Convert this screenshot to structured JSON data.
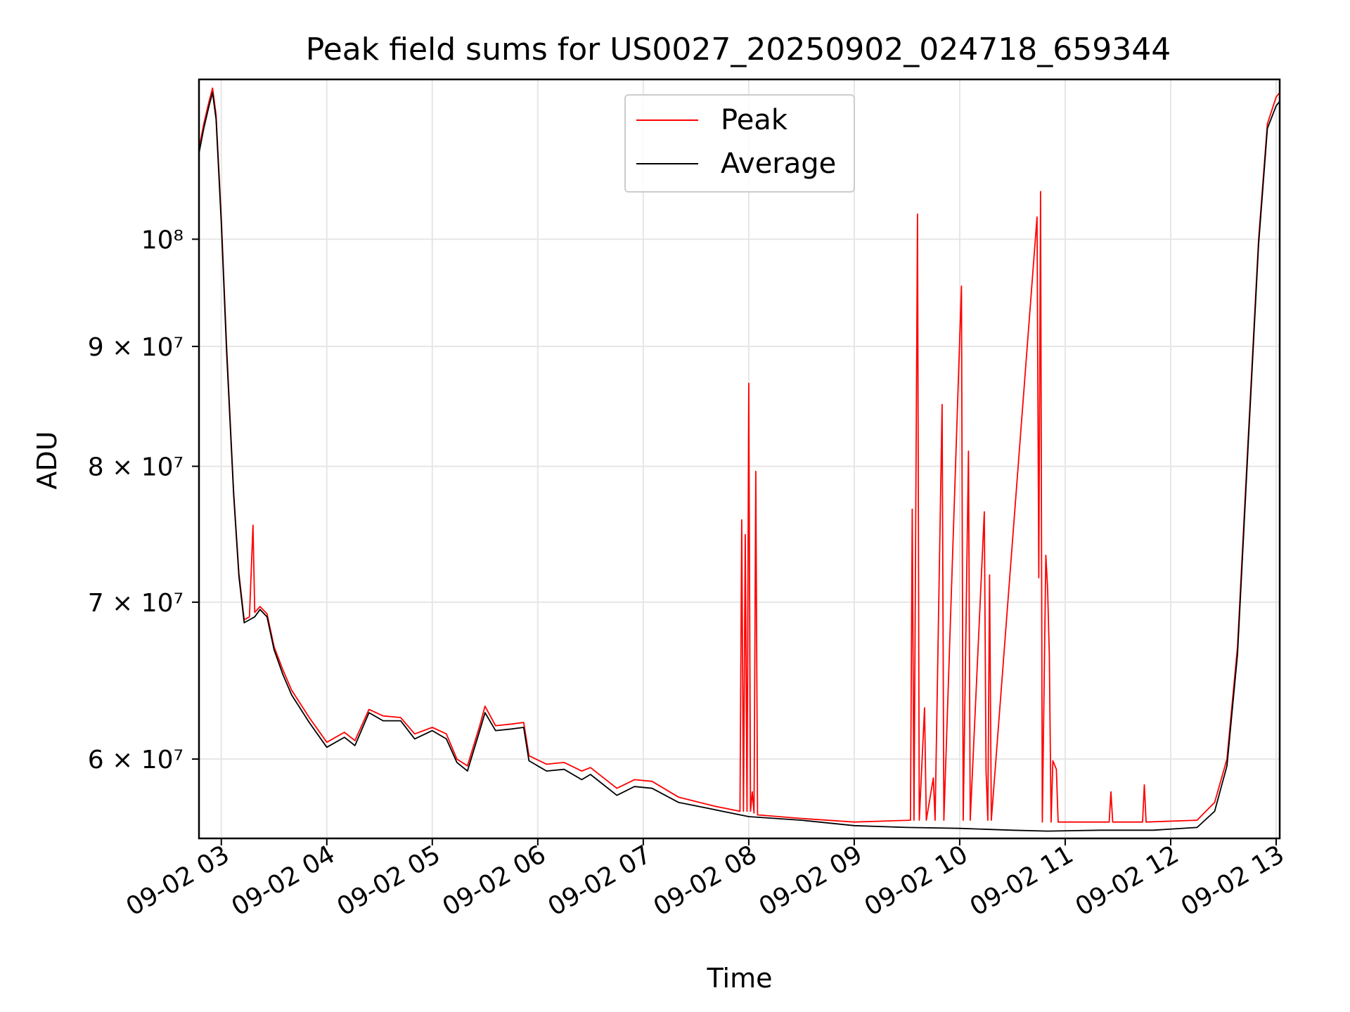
{
  "chart_data": {
    "type": "line",
    "title": "Peak field sums for US0027_20250902_024718_659344",
    "xlabel": "Time",
    "ylabel": "ADU",
    "y_scale": "log",
    "grid": true,
    "legend_position": "top-center",
    "xlim": [
      "2025-09-02 02:47:18",
      "2025-09-02 13:02:00"
    ],
    "ylim": [
      55500000,
      117000000
    ],
    "x_ticks": [
      "09-02 03",
      "09-02 04",
      "09-02 05",
      "09-02 06",
      "09-02 07",
      "09-02 08",
      "09-02 09",
      "09-02 10",
      "09-02 11",
      "09-02 12",
      "09-02 13"
    ],
    "y_ticks": [
      {
        "value": 60000000,
        "label": "6 × 10⁷"
      },
      {
        "value": 70000000,
        "label": "7 × 10⁷"
      },
      {
        "value": 80000000,
        "label": "8 × 10⁷"
      },
      {
        "value": 90000000,
        "label": "9 × 10⁷"
      },
      {
        "value": 100000000,
        "label": "10⁸"
      }
    ],
    "series": [
      {
        "name": "Peak",
        "color": "#ff0000",
        "points": [
          [
            "2025-09-02 02:47",
            109000000
          ],
          [
            "2025-09-02 02:50",
            112000000
          ],
          [
            "2025-09-02 02:53",
            114500000
          ],
          [
            "2025-09-02 02:55",
            116000000
          ],
          [
            "2025-09-02 02:57",
            113000000
          ],
          [
            "2025-09-02 03:00",
            102000000
          ],
          [
            "2025-09-02 03:03",
            90000000
          ],
          [
            "2025-09-02 03:07",
            78000000
          ],
          [
            "2025-09-02 03:10",
            72000000
          ],
          [
            "2025-09-02 03:13",
            68800000
          ],
          [
            "2025-09-02 03:16",
            69000000
          ],
          [
            "2025-09-02 03:18",
            75500000
          ],
          [
            "2025-09-02 03:19",
            69300000
          ],
          [
            "2025-09-02 03:22",
            69700000
          ],
          [
            "2025-09-02 03:26",
            69200000
          ],
          [
            "2025-09-02 03:30",
            67000000
          ],
          [
            "2025-09-02 03:35",
            65500000
          ],
          [
            "2025-09-02 03:40",
            64200000
          ],
          [
            "2025-09-02 03:50",
            62500000
          ],
          [
            "2025-09-02 04:00",
            61000000
          ],
          [
            "2025-09-02 04:10",
            61600000
          ],
          [
            "2025-09-02 04:16",
            61100000
          ],
          [
            "2025-09-02 04:24",
            63000000
          ],
          [
            "2025-09-02 04:32",
            62600000
          ],
          [
            "2025-09-02 04:42",
            62500000
          ],
          [
            "2025-09-02 04:50",
            61500000
          ],
          [
            "2025-09-02 05:00",
            61900000
          ],
          [
            "2025-09-02 05:08",
            61500000
          ],
          [
            "2025-09-02 05:14",
            60000000
          ],
          [
            "2025-09-02 05:20",
            59600000
          ],
          [
            "2025-09-02 05:27",
            62000000
          ],
          [
            "2025-09-02 05:30",
            63200000
          ],
          [
            "2025-09-02 05:36",
            62000000
          ],
          [
            "2025-09-02 05:45",
            62100000
          ],
          [
            "2025-09-02 05:52",
            62200000
          ],
          [
            "2025-09-02 05:55",
            60200000
          ],
          [
            "2025-09-02 06:05",
            59700000
          ],
          [
            "2025-09-02 06:15",
            59800000
          ],
          [
            "2025-09-02 06:25",
            59300000
          ],
          [
            "2025-09-02 06:30",
            59500000
          ],
          [
            "2025-09-02 06:45",
            58300000
          ],
          [
            "2025-09-02 06:55",
            58800000
          ],
          [
            "2025-09-02 07:05",
            58700000
          ],
          [
            "2025-09-02 07:20",
            57800000
          ],
          [
            "2025-09-02 07:40",
            57300000
          ],
          [
            "2025-09-02 07:55",
            57000000
          ],
          [
            "2025-09-02 07:56",
            75900000
          ],
          [
            "2025-09-02 07:57",
            57000000
          ],
          [
            "2025-09-02 07:58",
            74800000
          ],
          [
            "2025-09-02 07:59",
            57000000
          ],
          [
            "2025-09-02 08:00",
            86800000
          ],
          [
            "2025-09-02 08:01",
            57000000
          ],
          [
            "2025-09-02 08:02",
            58100000
          ],
          [
            "2025-09-02 08:03",
            56900000
          ],
          [
            "2025-09-02 08:04",
            79600000
          ],
          [
            "2025-09-02 08:05",
            56800000
          ],
          [
            "2025-09-02 08:30",
            56600000
          ],
          [
            "2025-09-02 09:00",
            56400000
          ],
          [
            "2025-09-02 09:32",
            56500000
          ],
          [
            "2025-09-02 09:33",
            76700000
          ],
          [
            "2025-09-02 09:34",
            56500000
          ],
          [
            "2025-09-02 09:36",
            102500000
          ],
          [
            "2025-09-02 09:37",
            56500000
          ],
          [
            "2025-09-02 09:40",
            63100000
          ],
          [
            "2025-09-02 09:41",
            56500000
          ],
          [
            "2025-09-02 09:45",
            58900000
          ],
          [
            "2025-09-02 09:46",
            56500000
          ],
          [
            "2025-09-02 09:50",
            85000000
          ],
          [
            "2025-09-02 09:51",
            56500000
          ],
          [
            "2025-09-02 10:01",
            95500000
          ],
          [
            "2025-09-02 10:02",
            56500000
          ],
          [
            "2025-09-02 10:05",
            81200000
          ],
          [
            "2025-09-02 10:06",
            56500000
          ],
          [
            "2025-09-02 10:14",
            76500000
          ],
          [
            "2025-09-02 10:15",
            59300000
          ],
          [
            "2025-09-02 10:16",
            56500000
          ],
          [
            "2025-09-02 10:17",
            71900000
          ],
          [
            "2025-09-02 10:18",
            56500000
          ],
          [
            "2025-09-02 10:44",
            102200000
          ],
          [
            "2025-09-02 10:45",
            71700000
          ],
          [
            "2025-09-02 10:46",
            104800000
          ],
          [
            "2025-09-02 10:47",
            56400000
          ],
          [
            "2025-09-02 10:49",
            73300000
          ],
          [
            "2025-09-02 10:50",
            71000000
          ],
          [
            "2025-09-02 10:51",
            66400000
          ],
          [
            "2025-09-02 10:52",
            56400000
          ],
          [
            "2025-09-02 10:53",
            59900000
          ],
          [
            "2025-09-02 10:55",
            59400000
          ],
          [
            "2025-09-02 10:56",
            56400000
          ],
          [
            "2025-09-02 11:25",
            56400000
          ],
          [
            "2025-09-02 11:26",
            58100000
          ],
          [
            "2025-09-02 11:27",
            56400000
          ],
          [
            "2025-09-02 11:44",
            56400000
          ],
          [
            "2025-09-02 11:45",
            58500000
          ],
          [
            "2025-09-02 11:46",
            56400000
          ],
          [
            "2025-09-02 12:15",
            56500000
          ],
          [
            "2025-09-02 12:25",
            57500000
          ],
          [
            "2025-09-02 12:32",
            60000000
          ],
          [
            "2025-09-02 12:38",
            67000000
          ],
          [
            "2025-09-02 12:44",
            82000000
          ],
          [
            "2025-09-02 12:50",
            100000000
          ],
          [
            "2025-09-02 12:55",
            112000000
          ],
          [
            "2025-09-02 13:00",
            115000000
          ],
          [
            "2025-09-02 13:02",
            115500000
          ]
        ]
      },
      {
        "name": "Average",
        "color": "#000000",
        "points": [
          [
            "2025-09-02 02:47",
            108500000
          ],
          [
            "2025-09-02 02:50",
            111500000
          ],
          [
            "2025-09-02 02:53",
            114000000
          ],
          [
            "2025-09-02 02:55",
            115500000
          ],
          [
            "2025-09-02 02:57",
            112500000
          ],
          [
            "2025-09-02 03:00",
            101500000
          ],
          [
            "2025-09-02 03:03",
            89500000
          ],
          [
            "2025-09-02 03:07",
            77800000
          ],
          [
            "2025-09-02 03:10",
            71800000
          ],
          [
            "2025-09-02 03:13",
            68600000
          ],
          [
            "2025-09-02 03:16",
            68800000
          ],
          [
            "2025-09-02 03:19",
            69000000
          ],
          [
            "2025-09-02 03:22",
            69500000
          ],
          [
            "2025-09-02 03:26",
            69000000
          ],
          [
            "2025-09-02 03:30",
            66800000
          ],
          [
            "2025-09-02 03:35",
            65200000
          ],
          [
            "2025-09-02 03:40",
            63900000
          ],
          [
            "2025-09-02 03:50",
            62200000
          ],
          [
            "2025-09-02 04:00",
            60700000
          ],
          [
            "2025-09-02 04:10",
            61300000
          ],
          [
            "2025-09-02 04:16",
            60800000
          ],
          [
            "2025-09-02 04:24",
            62800000
          ],
          [
            "2025-09-02 04:32",
            62300000
          ],
          [
            "2025-09-02 04:42",
            62300000
          ],
          [
            "2025-09-02 04:50",
            61200000
          ],
          [
            "2025-09-02 05:00",
            61700000
          ],
          [
            "2025-09-02 05:08",
            61200000
          ],
          [
            "2025-09-02 05:14",
            59800000
          ],
          [
            "2025-09-02 05:20",
            59300000
          ],
          [
            "2025-09-02 05:27",
            61700000
          ],
          [
            "2025-09-02 05:30",
            62800000
          ],
          [
            "2025-09-02 05:36",
            61700000
          ],
          [
            "2025-09-02 05:45",
            61800000
          ],
          [
            "2025-09-02 05:52",
            61900000
          ],
          [
            "2025-09-02 05:55",
            59900000
          ],
          [
            "2025-09-02 06:05",
            59300000
          ],
          [
            "2025-09-02 06:15",
            59400000
          ],
          [
            "2025-09-02 06:25",
            58800000
          ],
          [
            "2025-09-02 06:30",
            59100000
          ],
          [
            "2025-09-02 06:45",
            57900000
          ],
          [
            "2025-09-02 06:55",
            58400000
          ],
          [
            "2025-09-02 07:05",
            58300000
          ],
          [
            "2025-09-02 07:20",
            57500000
          ],
          [
            "2025-09-02 07:40",
            57100000
          ],
          [
            "2025-09-02 08:00",
            56700000
          ],
          [
            "2025-09-02 08:30",
            56500000
          ],
          [
            "2025-09-02 09:00",
            56200000
          ],
          [
            "2025-09-02 09:30",
            56100000
          ],
          [
            "2025-09-02 10:00",
            56050000
          ],
          [
            "2025-09-02 10:30",
            55950000
          ],
          [
            "2025-09-02 10:50",
            55900000
          ],
          [
            "2025-09-02 11:20",
            55950000
          ],
          [
            "2025-09-02 11:50",
            55950000
          ],
          [
            "2025-09-02 12:15",
            56100000
          ],
          [
            "2025-09-02 12:25",
            57000000
          ],
          [
            "2025-09-02 12:32",
            59600000
          ],
          [
            "2025-09-02 12:38",
            66500000
          ],
          [
            "2025-09-02 12:44",
            81500000
          ],
          [
            "2025-09-02 12:50",
            99500000
          ],
          [
            "2025-09-02 12:55",
            111500000
          ],
          [
            "2025-09-02 13:00",
            114000000
          ],
          [
            "2025-09-02 13:02",
            114500000
          ]
        ]
      }
    ]
  }
}
